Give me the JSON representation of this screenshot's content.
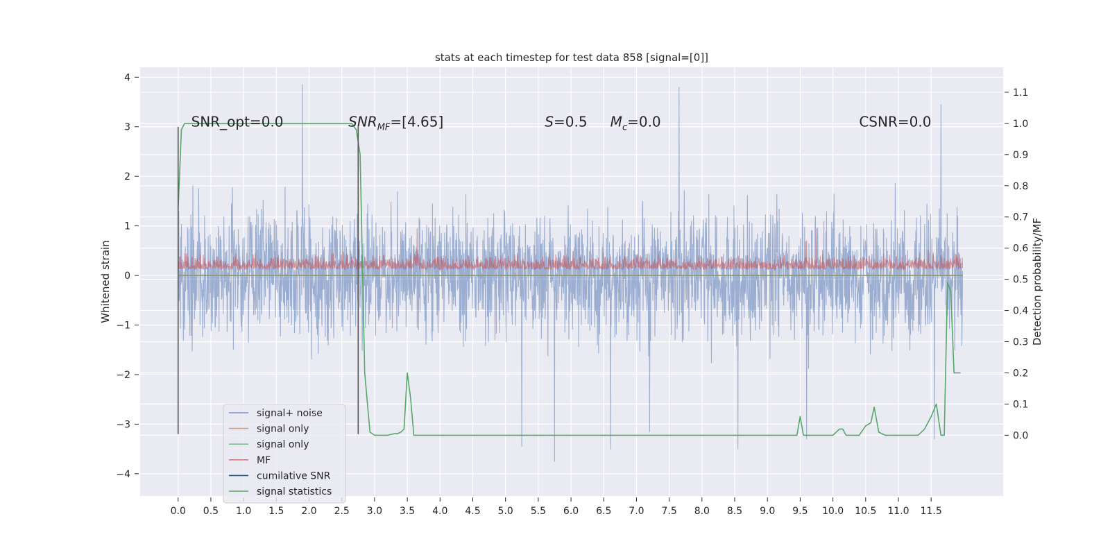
{
  "chart_data": {
    "type": "line",
    "title": "stats at each timestep for test data 858 [signal=[0]]",
    "xlabel": "",
    "ylabel": "Whitened strain",
    "y2label": "Detection probability/MF",
    "xlim": [
      -0.58,
      12.6
    ],
    "ylim": [
      -4.45,
      4.2
    ],
    "y2lim": [
      -0.195,
      1.18
    ],
    "xticks": [
      "0.0",
      "0.5",
      "1.0",
      "1.5",
      "2.0",
      "2.5",
      "3.0",
      "3.5",
      "4.0",
      "4.5",
      "5.0",
      "5.5",
      "6.0",
      "6.5",
      "7.0",
      "7.5",
      "8.0",
      "8.5",
      "9.0",
      "9.5",
      "10.0",
      "10.5",
      "11.0",
      "11.5"
    ],
    "yticks": [
      "−4",
      "−3",
      "−2",
      "−1",
      "0",
      "1",
      "2",
      "3",
      "4"
    ],
    "y2ticks": [
      "0.0",
      "0.1",
      "0.2",
      "0.3",
      "0.4",
      "0.5",
      "0.6",
      "0.7",
      "0.8",
      "0.9",
      "1.0",
      "1.1"
    ],
    "grid": true,
    "legend_position": "lower-left",
    "annotations": [
      {
        "text": "SNR_opt=0.0",
        "x": 0.2,
        "y": 3.0
      },
      {
        "text": "SNR_MF=[4.65]",
        "x": 2.6,
        "y": 3.0
      },
      {
        "text": "S=0.5",
        "x": 5.6,
        "y": 3.0
      },
      {
        "text": "M_c=0.0",
        "x": 6.6,
        "y": 3.0
      },
      {
        "text": "CSNR=0.0",
        "x": 10.4,
        "y": 3.0
      }
    ],
    "vlines": [
      {
        "x": 0.0,
        "ymin": -3.2,
        "ymax": 3.0,
        "color": "#555555"
      },
      {
        "x": 2.75,
        "ymin": -3.2,
        "ymax": 3.0,
        "color": "#555555"
      }
    ],
    "series": [
      {
        "name": "signal+ noise",
        "axis": "left",
        "color": "#4c72b0",
        "alpha": 0.5,
        "style": "noise",
        "x_range": [
          0.0,
          11.98
        ],
        "count": 2400,
        "amplitude": 1.2,
        "peaks": [
          [
            1.9,
            3.85
          ],
          [
            7.65,
            3.8
          ],
          [
            11.65,
            3.45
          ],
          [
            5.75,
            -3.75
          ],
          [
            5.25,
            -3.45
          ],
          [
            6.6,
            -3.5
          ],
          [
            8.55,
            -3.5
          ],
          [
            7.2,
            -3.15
          ],
          [
            9.6,
            -3.3
          ],
          [
            11.55,
            -3.3
          ]
        ]
      },
      {
        "name": "signal only",
        "axis": "left",
        "color": "#dd8452",
        "alpha": 0.8,
        "x": [
          0.0,
          11.98
        ],
        "y": [
          0.0,
          0.0
        ]
      },
      {
        "name": "signal only",
        "axis": "left",
        "color": "#55a868",
        "alpha": 0.6,
        "x": [
          0.0,
          11.98
        ],
        "y": [
          0.0,
          0.0
        ]
      },
      {
        "name": "MF",
        "axis": "left",
        "color": "#c44e52",
        "alpha": 0.55,
        "style": "noise",
        "x_range": [
          0.0,
          11.98
        ],
        "count": 2400,
        "baseline": 0.0,
        "amplitude": 0.3,
        "positive_only": true,
        "peaks": [
          [
            3.65,
            0.95
          ],
          [
            9.75,
            0.95
          ],
          [
            9.6,
            0.7
          ]
        ]
      },
      {
        "name": "cumilative SNR",
        "axis": "left",
        "color": "#1f4e9c",
        "alpha": 1.0,
        "x": [],
        "y": []
      },
      {
        "name": "signal statistics",
        "axis": "right",
        "color": "#55a868",
        "alpha": 1.0,
        "x": [
          0.0,
          0.05,
          0.1,
          2.55,
          2.65,
          2.72,
          2.78,
          2.85,
          2.93,
          3.0,
          3.1,
          3.2,
          3.3,
          3.35,
          3.4,
          3.45,
          3.5,
          3.55,
          3.6,
          3.65,
          3.8,
          4.0,
          9.3,
          9.45,
          9.5,
          9.55,
          9.7,
          10.0,
          10.1,
          10.15,
          10.2,
          10.3,
          10.4,
          10.5,
          10.58,
          10.63,
          10.7,
          10.8,
          11.3,
          11.4,
          11.5,
          11.58,
          11.65,
          11.7,
          11.75,
          11.8,
          11.85,
          11.9,
          11.95
        ],
        "y": [
          0.72,
          0.98,
          1.0,
          1.0,
          1.0,
          0.98,
          0.9,
          0.2,
          0.01,
          0.0,
          0.0,
          0.0,
          0.005,
          0.005,
          0.01,
          0.02,
          0.2,
          0.12,
          0.0,
          0.0,
          0.0,
          0.0,
          0.0,
          0.0,
          0.06,
          0.0,
          0.0,
          0.0,
          0.02,
          0.02,
          0.0,
          0.0,
          0.0,
          0.03,
          0.04,
          0.09,
          0.01,
          0.0,
          0.0,
          0.02,
          0.06,
          0.1,
          0.0,
          0.0,
          0.49,
          0.46,
          0.2,
          0.2,
          0.2
        ]
      }
    ],
    "legend": [
      "signal+ noise",
      "signal only",
      "signal only",
      "MF",
      "cumilative SNR",
      "signal statistics"
    ]
  }
}
